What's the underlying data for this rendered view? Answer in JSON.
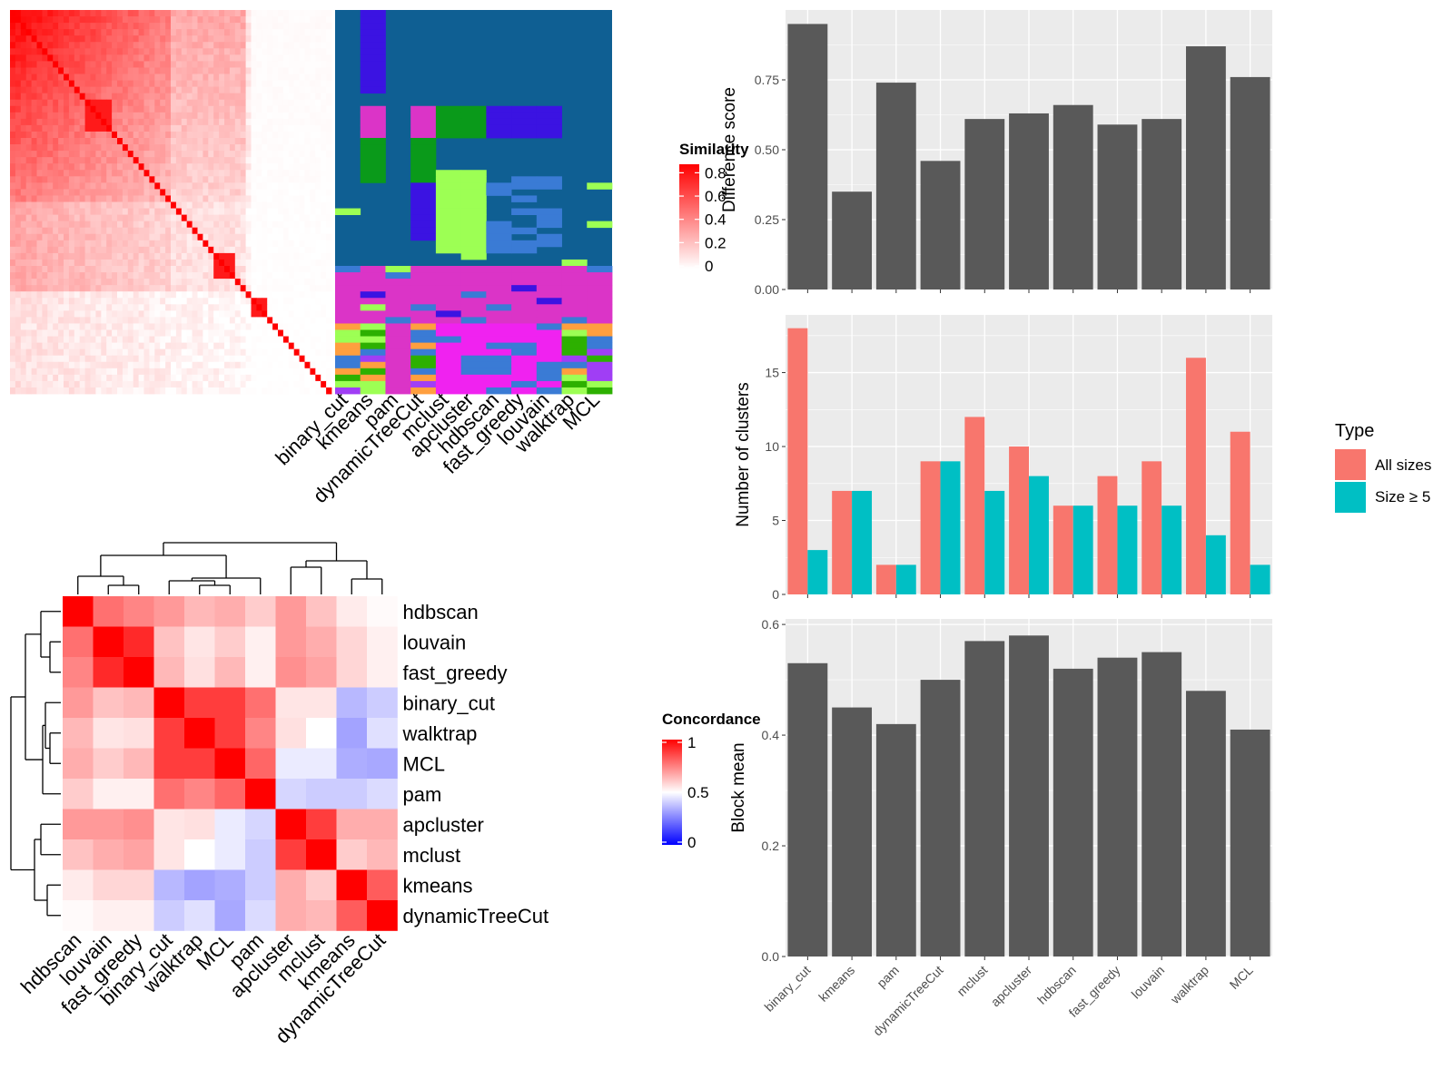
{
  "colors": {
    "panel_bg": "#ebebeb",
    "grid": "#ffffff",
    "bar_dark": "#595959",
    "all_sizes": "#f8766d",
    "size_ge5": "#00bfc4",
    "similarity_high": "#ff0000",
    "similarity_low": "#ffffff",
    "concord_high": "#ff0000",
    "concord_mid": "#ffffff",
    "concord_low": "#0000ff"
  },
  "panel_a": {
    "legend_title": "Similarity",
    "legend_ticks": [
      "0.8",
      "0.6",
      "0.4",
      "0.2",
      "0"
    ],
    "class_colors": [
      "#0f5f93",
      "#3b13e2",
      "#db34c7",
      "#0a9a1a",
      "#9dff54",
      "#3a7bd5",
      "#f022f0",
      "#fb6f8f",
      "#2db000",
      "#a03ef5",
      "#ff9f3f"
    ],
    "method_labels": [
      "binary_cut",
      "kmeans",
      "pam",
      "dynamicTreeCut",
      "mclust",
      "apcluster",
      "hdbscan",
      "fast_greedy",
      "louvain",
      "walktrap",
      "MCL"
    ]
  },
  "panel_b": {
    "legend_title": "Concordance",
    "legend_ticks": [
      "1",
      "0.5",
      "0"
    ],
    "row_labels": [
      "hdbscan",
      "louvain",
      "fast_greedy",
      "binary_cut",
      "walktrap",
      "MCL",
      "pam",
      "apcluster",
      "mclust",
      "kmeans",
      "dynamicTreeCut"
    ],
    "col_labels": [
      "hdbscan",
      "louvain",
      "fast_greedy",
      "binary_cut",
      "walktrap",
      "MCL",
      "pam",
      "apcluster",
      "mclust",
      "kmeans",
      "dynamicTreeCut"
    ]
  },
  "chart_data": [
    {
      "type": "bar",
      "categories": [
        "binary_cut",
        "kmeans",
        "pam",
        "dynamicTreeCut",
        "mclust",
        "apcluster",
        "hdbscan",
        "fast_greedy",
        "louvain",
        "walktrap",
        "MCL"
      ],
      "values": [
        0.95,
        0.35,
        0.74,
        0.46,
        0.61,
        0.63,
        0.66,
        0.59,
        0.61,
        0.87,
        0.76
      ],
      "xlabel": "",
      "ylabel": "Difference score",
      "ylim": [
        0,
        1.0
      ],
      "yticks": [
        0,
        0.25,
        0.5,
        0.75
      ],
      "ytick_labels": [
        "0.00",
        "0.25",
        "0.50",
        "0.75"
      ],
      "grid": true
    },
    {
      "type": "bar",
      "categories": [
        "binary_cut",
        "kmeans",
        "pam",
        "dynamicTreeCut",
        "mclust",
        "apcluster",
        "hdbscan",
        "fast_greedy",
        "louvain",
        "walktrap",
        "MCL"
      ],
      "series": [
        {
          "name": "All sizes",
          "values": [
            18,
            7,
            2,
            9,
            12,
            10,
            6,
            8,
            9,
            16,
            11
          ]
        },
        {
          "name": "Size ≥ 5",
          "values": [
            3,
            7,
            2,
            9,
            7,
            8,
            6,
            6,
            6,
            4,
            2
          ]
        }
      ],
      "xlabel": "",
      "ylabel": "Number of clusters",
      "ylim": [
        0,
        18.9
      ],
      "yticks": [
        0,
        5,
        10,
        15
      ],
      "ytick_labels": [
        "0",
        "5",
        "10",
        "15"
      ],
      "legend_title": "Type",
      "legend_position": "right",
      "grid": true
    },
    {
      "type": "bar",
      "categories": [
        "binary_cut",
        "kmeans",
        "pam",
        "dynamicTreeCut",
        "mclust",
        "apcluster",
        "hdbscan",
        "fast_greedy",
        "louvain",
        "walktrap",
        "MCL"
      ],
      "values": [
        0.53,
        0.45,
        0.42,
        0.5,
        0.57,
        0.58,
        0.52,
        0.54,
        0.55,
        0.48,
        0.41
      ],
      "xlabel": "",
      "ylabel": "Block mean",
      "ylim": [
        0,
        0.61
      ],
      "yticks": [
        0,
        0.2,
        0.4,
        0.6
      ],
      "ytick_labels": [
        "0.0",
        "0.2",
        "0.4",
        "0.6"
      ],
      "grid": true
    },
    {
      "type": "heatmap",
      "rows": [
        "hdbscan",
        "louvain",
        "fast_greedy",
        "binary_cut",
        "walktrap",
        "MCL",
        "pam",
        "apcluster",
        "mclust",
        "kmeans",
        "dynamicTreeCut"
      ],
      "columns": [
        "hdbscan",
        "louvain",
        "fast_greedy",
        "binary_cut",
        "walktrap",
        "MCL",
        "pam",
        "apcluster",
        "mclust",
        "kmeans",
        "dynamicTreeCut"
      ],
      "values": [
        [
          1.0,
          0.78,
          0.74,
          0.7,
          0.64,
          0.66,
          0.6,
          0.7,
          0.62,
          0.54,
          0.51
        ],
        [
          0.78,
          1.0,
          0.92,
          0.62,
          0.55,
          0.6,
          0.53,
          0.7,
          0.66,
          0.58,
          0.53
        ],
        [
          0.74,
          0.92,
          1.0,
          0.64,
          0.56,
          0.64,
          0.53,
          0.72,
          0.68,
          0.58,
          0.53
        ],
        [
          0.7,
          0.62,
          0.64,
          1.0,
          0.88,
          0.88,
          0.78,
          0.55,
          0.55,
          0.36,
          0.4
        ],
        [
          0.64,
          0.55,
          0.56,
          0.88,
          1.0,
          0.88,
          0.74,
          0.56,
          0.5,
          0.32,
          0.44
        ],
        [
          0.66,
          0.6,
          0.64,
          0.88,
          0.88,
          1.0,
          0.8,
          0.46,
          0.46,
          0.34,
          0.33
        ],
        [
          0.6,
          0.53,
          0.53,
          0.78,
          0.74,
          0.8,
          1.0,
          0.42,
          0.4,
          0.4,
          0.43
        ],
        [
          0.7,
          0.7,
          0.72,
          0.55,
          0.56,
          0.46,
          0.42,
          1.0,
          0.88,
          0.66,
          0.66
        ],
        [
          0.62,
          0.66,
          0.68,
          0.55,
          0.5,
          0.46,
          0.4,
          0.88,
          1.0,
          0.6,
          0.64
        ],
        [
          0.54,
          0.58,
          0.58,
          0.36,
          0.32,
          0.34,
          0.4,
          0.66,
          0.6,
          1.0,
          0.82
        ],
        [
          0.51,
          0.53,
          0.53,
          0.4,
          0.44,
          0.33,
          0.43,
          0.66,
          0.64,
          0.82,
          1.0
        ]
      ],
      "zlim": [
        0,
        1
      ],
      "legend_title": "Concordance"
    }
  ]
}
